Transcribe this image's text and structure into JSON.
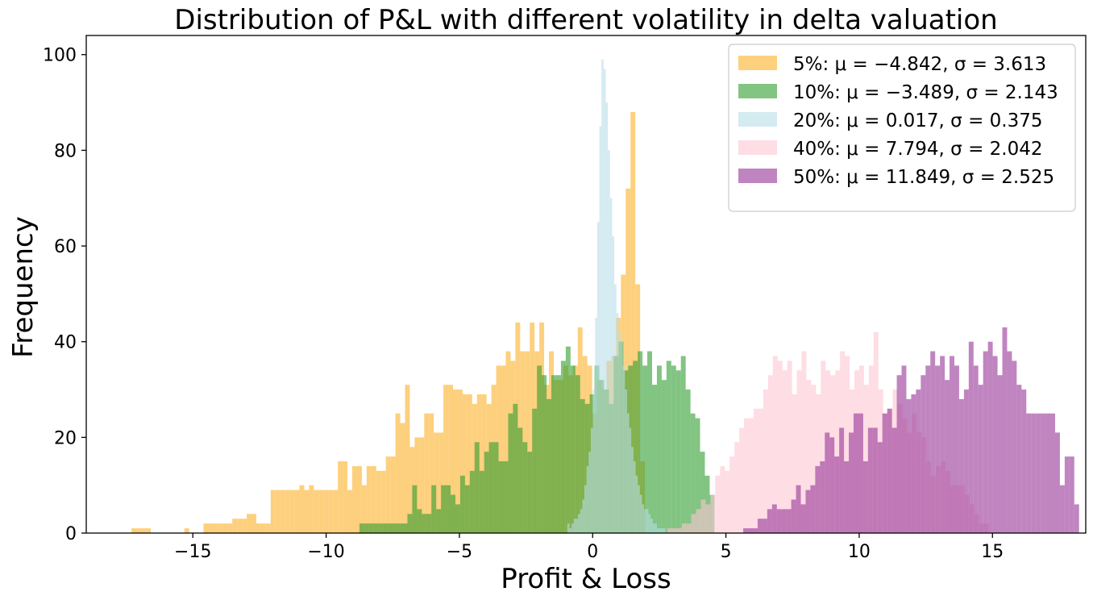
{
  "chart_data": {
    "type": "histogram",
    "title": "Distribution of P&L with different volatility in delta valuation",
    "xlabel": "Profit & Loss",
    "ylabel": "Frequency",
    "xlim": [
      -19,
      18.5
    ],
    "ylim": [
      0,
      104
    ],
    "xticks": [
      -15,
      -10,
      -5,
      0,
      5,
      10,
      15
    ],
    "xtick_labels": [
      "−15",
      "−10",
      "−5",
      "0",
      "5",
      "10",
      "15"
    ],
    "yticks": [
      0,
      20,
      40,
      60,
      80,
      100
    ],
    "ytick_labels": [
      "0",
      "20",
      "40",
      "60",
      "80",
      "100"
    ],
    "legend_position": "upper right",
    "series": [
      {
        "name": "5%",
        "legend": "5%: μ = −4.842, σ = 3.613",
        "color": "#fdc35a",
        "alpha": 0.78,
        "start": -17.3,
        "width": 0.18,
        "values": [
          1,
          1,
          1,
          1,
          0,
          0,
          0,
          0,
          0,
          0,
          0,
          1,
          0,
          0,
          0,
          2,
          2,
          2,
          2,
          2,
          2,
          3,
          3,
          3,
          4,
          4,
          2,
          2,
          2,
          9,
          9,
          9,
          9,
          9,
          9,
          10,
          9,
          10,
          9,
          9,
          9,
          9,
          9,
          15,
          15,
          9,
          14,
          14,
          10,
          14,
          14,
          13,
          13,
          16,
          16,
          25,
          23,
          31,
          18,
          20,
          20,
          25,
          25,
          21,
          21,
          31,
          31,
          30,
          30,
          29,
          29,
          27,
          29,
          29,
          27,
          31,
          35,
          35,
          38,
          36,
          44,
          38,
          38,
          44,
          38,
          44,
          31,
          38,
          32,
          32,
          35,
          33,
          35,
          43,
          37,
          35,
          25,
          32,
          30,
          36,
          37,
          45,
          54,
          72,
          88,
          52,
          15
        ]
      },
      {
        "name": "10%",
        "legend": "10%: μ = −3.489, σ = 2.143",
        "color": "#2e9c2e",
        "alpha": 0.6,
        "start": -8.75,
        "width": 0.18,
        "values": [
          2,
          2,
          2,
          2,
          2,
          2,
          2,
          2,
          2,
          2,
          4,
          10,
          5,
          4,
          4,
          10,
          5,
          10,
          10,
          8,
          6,
          12,
          10,
          13,
          19,
          13,
          17,
          19,
          19,
          15,
          15,
          25,
          27,
          22,
          19,
          17,
          26,
          35,
          33,
          28,
          33,
          33,
          36,
          39,
          35,
          33,
          28,
          27,
          29,
          35,
          32,
          30,
          27,
          37,
          40,
          34,
          35,
          36,
          38,
          35,
          38,
          31,
          35,
          32,
          36,
          35,
          34,
          37,
          30,
          25,
          24,
          17,
          12,
          8
        ]
      },
      {
        "name": "20%",
        "legend": "20%: μ = 0.017, σ = 0.375",
        "color": "#b7dde8",
        "alpha": 0.6,
        "start": -0.95,
        "width": 0.08,
        "values": [
          2,
          1,
          2,
          3,
          3,
          4,
          5,
          7,
          10,
          14,
          17,
          22,
          30,
          45,
          65,
          85,
          99,
          97,
          90,
          80,
          70,
          62,
          52,
          46,
          42,
          40,
          35,
          30,
          25,
          22,
          18,
          15,
          12,
          10,
          8,
          6,
          5,
          5,
          4,
          3,
          2,
          2,
          1,
          1,
          1,
          1
        ]
      },
      {
        "name": "40%",
        "legend": "40%: μ = 7.794, σ = 2.042",
        "color": "#fec6d3",
        "alpha": 0.6,
        "start": 2.8,
        "width": 0.18,
        "values": [
          1,
          1,
          1,
          2,
          2,
          4,
          5,
          7,
          6,
          8,
          12,
          14,
          13,
          16,
          19,
          22,
          24,
          24,
          26,
          26,
          30,
          33,
          37,
          36,
          34,
          36,
          29,
          34,
          38,
          32,
          31,
          29,
          36,
          34,
          33,
          34,
          38,
          37,
          30,
          34,
          35,
          31,
          35,
          42,
          30,
          25,
          26,
          30,
          27,
          24,
          21,
          25,
          21,
          20,
          15,
          12,
          14,
          15,
          13,
          10,
          10,
          10,
          8,
          6,
          4,
          2,
          2
        ]
      },
      {
        "name": "50%",
        "legend": "50%: μ = 11.849, σ = 2.525",
        "color": "#9a3a9a",
        "alpha": 0.62,
        "start": 5.65,
        "width": 0.18,
        "values": [
          1,
          1,
          1,
          3,
          3,
          5,
          6,
          5,
          5,
          5,
          7,
          10,
          6,
          9,
          10,
          14,
          15,
          21,
          20,
          16,
          22,
          15,
          21,
          25,
          25,
          15,
          22,
          22,
          19,
          25,
          26,
          22,
          33,
          35,
          28,
          29,
          30,
          33,
          35,
          38,
          35,
          37,
          32,
          37,
          35,
          28,
          30,
          40,
          35,
          31,
          38,
          40,
          37,
          33,
          43,
          38,
          36,
          31,
          30,
          25,
          25,
          25,
          25,
          25,
          25,
          21,
          10,
          16,
          16,
          6
        ]
      }
    ]
  }
}
